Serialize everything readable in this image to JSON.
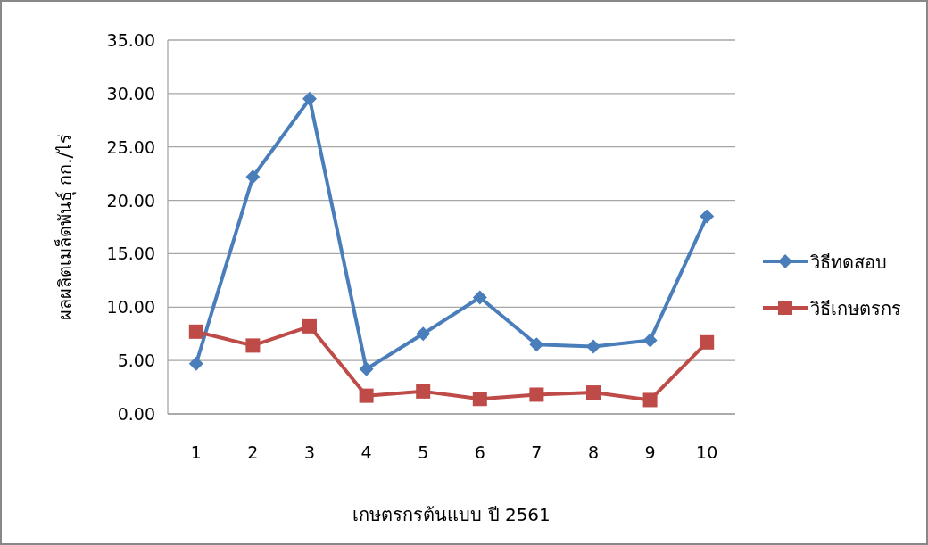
{
  "chart_data": {
    "type": "line",
    "xlabel": "เกษตรกรต้นแบบ ปี 2561",
    "ylabel": "ผลผลิตเมล็ดพันธุ์ กก./ไร่",
    "categories": [
      "1",
      "2",
      "3",
      "4",
      "5",
      "6",
      "7",
      "8",
      "9",
      "10"
    ],
    "series": [
      {
        "name": "วิธีทดสอบ",
        "color": "#4a7ebb",
        "marker": "diamond",
        "values": [
          4.7,
          22.2,
          29.5,
          4.2,
          7.5,
          10.9,
          6.5,
          6.3,
          6.9,
          18.5
        ]
      },
      {
        "name": "วิธีเกษตรกร",
        "color": "#be4b48",
        "marker": "square",
        "values": [
          7.7,
          6.4,
          8.2,
          1.7,
          2.1,
          1.4,
          1.8,
          2.0,
          1.3,
          6.7
        ]
      }
    ],
    "ylim": [
      0,
      35
    ],
    "yticks": [
      {
        "value": 0,
        "label": "0.00"
      },
      {
        "value": 5,
        "label": "5.00"
      },
      {
        "value": 10,
        "label": "10.00"
      },
      {
        "value": 15,
        "label": "15.00"
      },
      {
        "value": 20,
        "label": "20.00"
      },
      {
        "value": 25,
        "label": "25.00"
      },
      {
        "value": 30,
        "label": "30.00"
      },
      {
        "value": 35,
        "label": "35.00"
      }
    ],
    "grid": "y",
    "legend": "right",
    "line_style": "solid"
  }
}
